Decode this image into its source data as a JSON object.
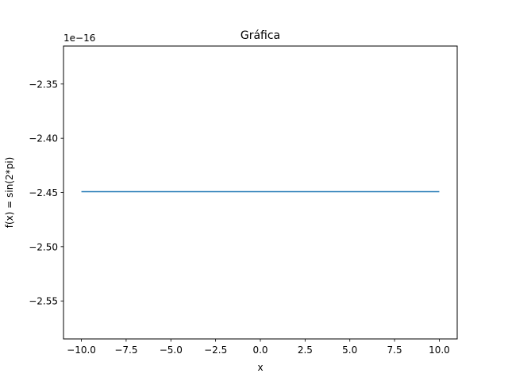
{
  "chart_data": {
    "type": "line",
    "title": "Gráfica",
    "xlabel": "x",
    "ylabel": "f(x) = sin(2*pi)",
    "y_offset_label": "1e−16",
    "xlim": [
      -11.0,
      11.0
    ],
    "ylim": [
      -2.585,
      -2.315
    ],
    "x_ticks": [
      {
        "value": -10.0,
        "label": "−10.0"
      },
      {
        "value": -7.5,
        "label": "−7.5"
      },
      {
        "value": -5.0,
        "label": "−5.0"
      },
      {
        "value": -2.5,
        "label": "−2.5"
      },
      {
        "value": 0.0,
        "label": "0.0"
      },
      {
        "value": 2.5,
        "label": "2.5"
      },
      {
        "value": 5.0,
        "label": "5.0"
      },
      {
        "value": 7.5,
        "label": "7.5"
      },
      {
        "value": 10.0,
        "label": "10.0"
      }
    ],
    "y_ticks": [
      {
        "value": -2.35,
        "label": "−2.35"
      },
      {
        "value": -2.4,
        "label": "−2.40"
      },
      {
        "value": -2.45,
        "label": "−2.45"
      },
      {
        "value": -2.5,
        "label": "−2.50"
      },
      {
        "value": -2.55,
        "label": "−2.55"
      }
    ],
    "grid": false,
    "series": [
      {
        "color": "#1f77b4",
        "x": [
          -10.0,
          10.0
        ],
        "y": [
          -2.4492935982947066,
          -2.4492935982947066
        ]
      }
    ]
  }
}
